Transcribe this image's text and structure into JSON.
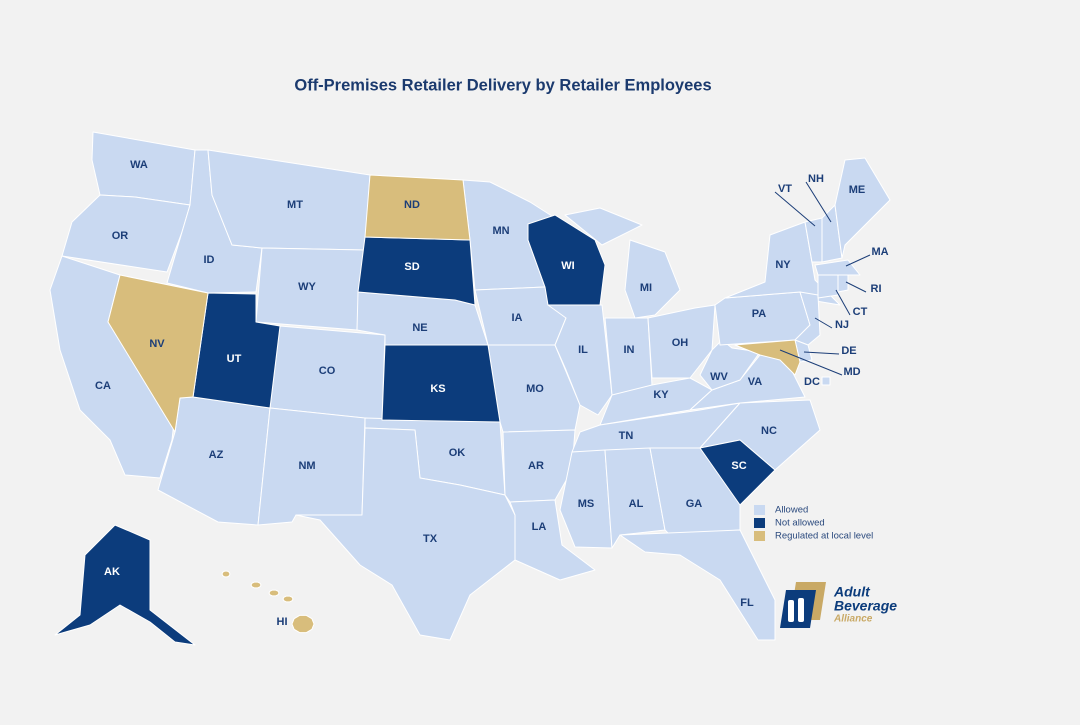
{
  "title": "Off-Premises Retailer Delivery by Retailer Employees",
  "legend": [
    {
      "label": "Allowed",
      "color": "#c9d9f1",
      "states": [
        "WA",
        "OR",
        "CA",
        "ID",
        "MT",
        "WY",
        "CO",
        "AZ",
        "NM",
        "NE",
        "OK",
        "TX",
        "MN",
        "IA",
        "MO",
        "AR",
        "LA",
        "IL",
        "MI",
        "IN",
        "OH",
        "KY",
        "TN",
        "MS",
        "AL",
        "GA",
        "FL",
        "NC",
        "VA",
        "WV",
        "PA",
        "NY",
        "NJ",
        "DE",
        "DC",
        "VT",
        "NH",
        "ME",
        "MA",
        "CT",
        "RI"
      ]
    },
    {
      "label": "Not allowed",
      "color": "#0c3c7c",
      "states": [
        "UT",
        "SD",
        "KS",
        "WI",
        "SC",
        "AK"
      ]
    },
    {
      "label": "Regulated at local level",
      "color": "#d8bd7c",
      "states": [
        "NV",
        "ND",
        "MD",
        "HI"
      ]
    }
  ],
  "logo": {
    "name": [
      "Adult",
      "Beverage"
    ],
    "tagline": "Alliance"
  }
}
